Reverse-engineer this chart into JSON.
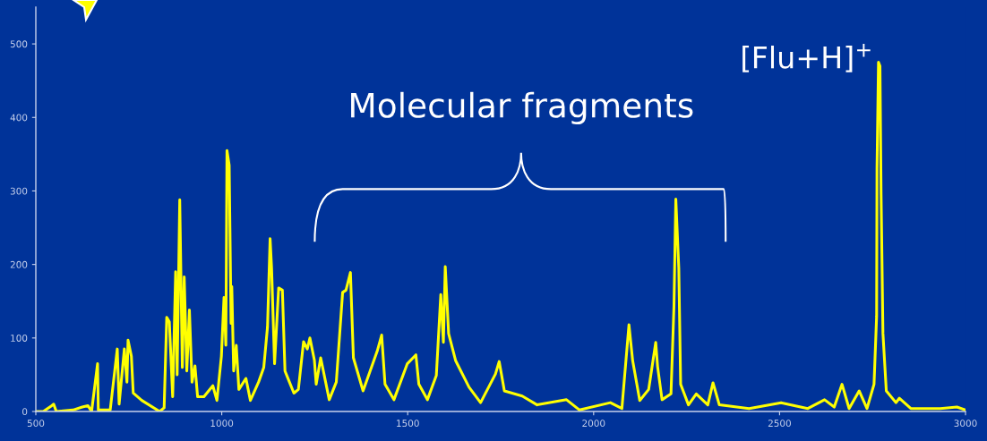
{
  "chart_data": {
    "type": "line",
    "x": [
      500,
      520,
      543,
      548,
      555,
      600,
      625,
      640,
      650,
      666,
      668,
      700,
      719,
      724,
      738,
      745,
      748,
      757,
      762,
      785,
      833,
      845,
      852,
      859,
      868,
      876,
      880,
      887,
      894,
      899,
      906,
      913,
      920,
      928,
      935,
      952,
      976,
      987,
      999,
      1006,
      1011,
      1014,
      1020,
      1025,
      1027,
      1032,
      1039,
      1046,
      1065,
      1077,
      1099,
      1113,
      1123,
      1130,
      1134,
      1142,
      1153,
      1163,
      1170,
      1182,
      1194,
      1206,
      1220,
      1230,
      1237,
      1249,
      1254,
      1266,
      1289,
      1308,
      1325,
      1334,
      1346,
      1354,
      1380,
      1418,
      1430,
      1439,
      1463,
      1499,
      1522,
      1530,
      1553,
      1577,
      1589,
      1596,
      1601,
      1610,
      1629,
      1665,
      1696,
      1736,
      1746,
      1760,
      1808,
      1848,
      1927,
      1962,
      2045,
      2076,
      2095,
      2105,
      2124,
      2148,
      2167,
      2172,
      2184,
      2208,
      2216,
      2221,
      2229,
      2234,
      2255,
      2276,
      2307,
      2321,
      2338,
      2418,
      2504,
      2576,
      2621,
      2647,
      2668,
      2687,
      2714,
      2735,
      2754,
      2761,
      2762,
      2766,
      2770,
      2773,
      2778,
      2787,
      2813,
      2822,
      2853,
      2932,
      2977,
      3000
    ],
    "series": [
      {
        "color": "#ffff00",
        "values": [
          0,
          0,
          8,
          10,
          0,
          2,
          6,
          8,
          0,
          65,
          2,
          2,
          85,
          10,
          85,
          40,
          97,
          75,
          25,
          15,
          0,
          5,
          128,
          122,
          20,
          190,
          50,
          288,
          60,
          183,
          55,
          138,
          40,
          62,
          20,
          20,
          35,
          15,
          75,
          155,
          90,
          355,
          335,
          120,
          170,
          55,
          90,
          30,
          45,
          15,
          40,
          60,
          115,
          235,
          195,
          65,
          168,
          165,
          55,
          40,
          25,
          30,
          95,
          85,
          100,
          70,
          37,
          73,
          16,
          40,
          162,
          165,
          189,
          73,
          28,
          82,
          104,
          37,
          16,
          65,
          77,
          37,
          16,
          49,
          159,
          94,
          197,
          106,
          69,
          33,
          12,
          51,
          68,
          28,
          21,
          9,
          16,
          2,
          12,
          4,
          118,
          69,
          15,
          30,
          94,
          61,
          16,
          24,
          143,
          289,
          195,
          37,
          9,
          24,
          9,
          39,
          9,
          4,
          12,
          4,
          16,
          6,
          37,
          4,
          28,
          4,
          37,
          130,
          330,
          475,
          470,
          295,
          106,
          28,
          12,
          18,
          4,
          4,
          6,
          2
        ]
      }
    ],
    "xlim": [
      500,
      3000
    ],
    "xticks": [
      500,
      1000,
      1500,
      2000,
      2500,
      3000
    ],
    "ylim": [
      0,
      550
    ],
    "yticks": [
      0,
      100,
      200,
      300,
      400,
      500
    ],
    "grid": false,
    "legend": false,
    "marker": "none",
    "line_style": "solid",
    "annotations": [
      "Molecular fragments",
      {
        "text": "[Flu+H]$^{+}$",
        "x": 2766,
        "y": 475
      }
    ]
  }
}
